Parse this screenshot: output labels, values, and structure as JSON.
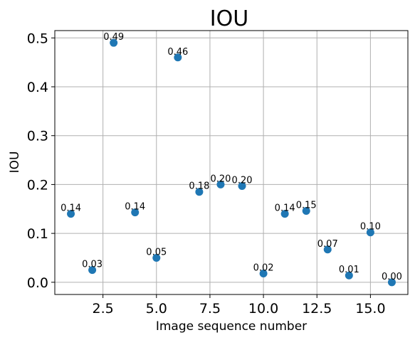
{
  "chart_data": {
    "type": "scatter",
    "title": "IOU",
    "xlabel": "Image sequence number",
    "ylabel": "IOU",
    "xlim": [
      0.25,
      16.75
    ],
    "ylim": [
      -0.025,
      0.515
    ],
    "grid": true,
    "xticks": [
      2.5,
      5.0,
      7.5,
      10.0,
      12.5,
      15.0
    ],
    "xtick_labels": [
      "2.5",
      "5.0",
      "7.5",
      "10.0",
      "12.5",
      "15.0"
    ],
    "yticks": [
      0.0,
      0.1,
      0.2,
      0.3,
      0.4,
      0.5
    ],
    "ytick_labels": [
      "0.0",
      "0.1",
      "0.2",
      "0.3",
      "0.4",
      "0.5"
    ],
    "marker_color": "#1f77b4",
    "points": [
      {
        "x": 1,
        "y": 0.14,
        "label": "0.14"
      },
      {
        "x": 2,
        "y": 0.025,
        "label": "0.03"
      },
      {
        "x": 3,
        "y": 0.49,
        "label": "0.49"
      },
      {
        "x": 4,
        "y": 0.143,
        "label": "0.14"
      },
      {
        "x": 5,
        "y": 0.05,
        "label": "0.05"
      },
      {
        "x": 6,
        "y": 0.46,
        "label": "0.46"
      },
      {
        "x": 7,
        "y": 0.185,
        "label": "0.18"
      },
      {
        "x": 8,
        "y": 0.2,
        "label": "0.20"
      },
      {
        "x": 9,
        "y": 0.197,
        "label": "0.20"
      },
      {
        "x": 10,
        "y": 0.018,
        "label": "0.02"
      },
      {
        "x": 11,
        "y": 0.14,
        "label": "0.14"
      },
      {
        "x": 12,
        "y": 0.146,
        "label": "0.15"
      },
      {
        "x": 13,
        "y": 0.067,
        "label": "0.07"
      },
      {
        "x": 14,
        "y": 0.014,
        "label": "0.01"
      },
      {
        "x": 15,
        "y": 0.102,
        "label": "0.10"
      },
      {
        "x": 16,
        "y": 0.0,
        "label": "0.00"
      }
    ]
  }
}
